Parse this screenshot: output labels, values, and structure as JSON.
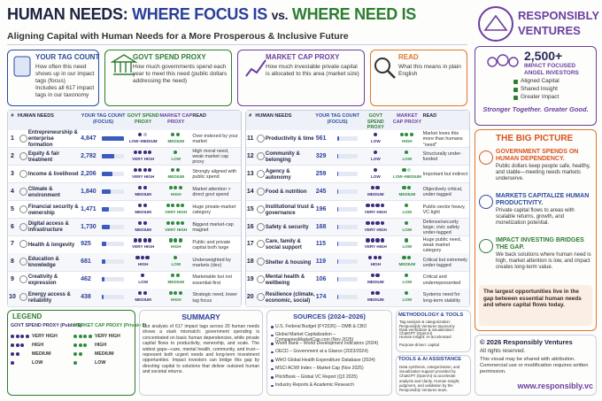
{
  "header": {
    "title": [
      "HUMAN NEEDS:",
      "WHERE FOCUS IS",
      "vs.",
      "WHERE NEED IS"
    ],
    "subtitle": "Aligning Capital with Human Needs for a More Prosperous & Inclusive Future",
    "logo": [
      "RESPONSIBLY",
      "VENTURES"
    ]
  },
  "cards": [
    {
      "title": "YOUR TAG COUNT",
      "text": [
        "How often this need shows up in our impact tags (focus)",
        "Includes all 617 impact tags in our taxonomy"
      ]
    },
    {
      "title": "GOVT SPEND PROXY",
      "text": [
        "How much governments spend each year to meet this need (public dollars addressing the need)"
      ]
    },
    {
      "title": "MARKET CAP PROXY",
      "text": [
        "How much investable private capital is allocated to this area (market size)"
      ]
    },
    {
      "title": "READ",
      "text": [
        "What this means in plain English"
      ]
    }
  ],
  "network": {
    "count": "2,500+",
    "label": "IMPACT FOCUSED ANGEL INVESTORS",
    "checks": [
      "Aligned Capital",
      "Shared Insight",
      "Greater Impact"
    ],
    "tagline": "Stronger Together. Greater Good."
  },
  "table": {
    "columns": [
      "#",
      "HUMAN NEEDS",
      "YOUR TAG COUNT (FOCUS)",
      "GOVT SPEND PROXY",
      "MARKET CAP PROXY",
      "READ"
    ],
    "rows": [
      {
        "n": 1,
        "need": "Entrepreneurship & enterprise formation",
        "tags": 4847,
        "tags_label": "4,847",
        "govt": "LOW–MEDIUM",
        "market": "MEDIUM",
        "read": "Over-indexed by your market"
      },
      {
        "n": 2,
        "need": "Equity & fair treatment",
        "tags": 2782,
        "tags_label": "2,782",
        "govt": "VERY HIGH",
        "market": "LOW",
        "read": "High moral need, weak market cap proxy"
      },
      {
        "n": 3,
        "need": "Income & livelihood",
        "tags": 2206,
        "tags_label": "2,206",
        "govt": "VERY HIGH",
        "market": "MEDIUM",
        "read": "Strongly aligned with public spend"
      },
      {
        "n": 4,
        "need": "Climate & environment",
        "tags": 1840,
        "tags_label": "1,840",
        "govt": "MEDIUM",
        "market": "HIGH",
        "read": "Market attention > direct govt spend"
      },
      {
        "n": 5,
        "need": "Financial security & ownership",
        "tags": 1471,
        "tags_label": "1,471",
        "govt": "MEDIUM",
        "market": "VERY HIGH",
        "read": "Huge private-market category"
      },
      {
        "n": 6,
        "need": "Digital access & infrastructure",
        "tags": 1730,
        "tags_label": "1,730",
        "govt": "MEDIUM",
        "market": "VERY HIGH",
        "read": "Biggest market-cap magnet"
      },
      {
        "n": 7,
        "need": "Health & longevity",
        "tags": 925,
        "govt": "VERY HIGH",
        "market": "HIGH",
        "read": "Public and private capital both large"
      },
      {
        "n": 8,
        "need": "Education & knowledge",
        "tags": 681,
        "govt": "HIGH",
        "market": "LOW",
        "read": "Underweighted by markets (dev)"
      },
      {
        "n": 9,
        "need": "Creativity & expression",
        "tags": 462,
        "govt": "LOW",
        "market": "MEDIUM",
        "read": "Marketable but not essential-first"
      },
      {
        "n": 10,
        "need": "Energy access & reliability",
        "tags": 438,
        "govt": "MEDIUM",
        "market": "HIGH",
        "read": "Strategic need, lower tag focus"
      },
      {
        "n": 11,
        "need": "Productivity & time",
        "tags": 561,
        "govt": "LOW",
        "market": "HIGH",
        "read": "Market loves this more than humans \"need\""
      },
      {
        "n": 12,
        "need": "Community & belonging",
        "tags": 329,
        "govt": "LOW",
        "market": "LOW",
        "read": "Structurally under-funded"
      },
      {
        "n": 13,
        "need": "Agency & autonomy",
        "tags": 259,
        "govt": "LOW",
        "market": "LOW–MEDIUM",
        "read": "Important but indirect"
      },
      {
        "n": 14,
        "need": "Food & nutrition",
        "tags": 245,
        "govt": "MEDIUM",
        "market": "MEDIUM",
        "read": "Objectively critical, under-tagged"
      },
      {
        "n": 15,
        "need": "Institutional trust & governance",
        "tags": 196,
        "govt": "VERY HIGH",
        "market": "LOW",
        "read": "Public-sector heavy, VC-light"
      },
      {
        "n": 16,
        "need": "Safety & security",
        "tags": 168,
        "govt": "VERY HIGH",
        "market": "LOW",
        "read": "Defense/security large; civic safety under-tagged"
      },
      {
        "n": 17,
        "need": "Care, family & social support",
        "tags": 115,
        "govt": "VERY HIGH",
        "market": "LOW",
        "read": "Huge public need, weak market category"
      },
      {
        "n": 18,
        "need": "Shelter & housing",
        "tags": 119,
        "govt": "HIGH",
        "market": "MEDIUM",
        "read": "Critical but extremely under-tagged"
      },
      {
        "n": 19,
        "need": "Mental health & wellbeing",
        "tags": 106,
        "govt": "MEDIUM",
        "market": "LOW",
        "read": "Critical and underrepresented"
      },
      {
        "n": 20,
        "need": "Resilience (climate, economic, social)",
        "tags": 174,
        "govt": "MEDIUM",
        "market": "LOW",
        "read": "Systems need for long-term stability"
      }
    ]
  },
  "big_picture": {
    "title": "THE BIG PICTURE",
    "items": [
      {
        "title": "GOVERNMENT SPENDS ON HUMAN DEPENDENCY.",
        "text": "Public dollars keep people safe, healthy, and stable—meeting needs markets underserve."
      },
      {
        "title": "MARKETS CAPITALIZE HUMAN PRODUCTIVITY.",
        "text": "Private capital flows to areas with scalable returns, growth, and monetization potential."
      },
      {
        "title": "IMPACT INVESTING BRIDGES THE GAP.",
        "text": "We back solutions where human need is high, market attention is low, and impact creates long-term value."
      }
    ],
    "callout": "The largest opportunities live in the gap between essential human needs and where capital flows today."
  },
  "legend": {
    "title": "LEGEND",
    "groups": [
      {
        "title": "GOVT SPEND PROXY (Public $)",
        "levels": [
          "VERY HIGH",
          "HIGH",
          "MEDIUM",
          "LOW"
        ]
      },
      {
        "title": "MARKET CAP PROXY (Private $)",
        "levels": [
          "VERY HIGH",
          "HIGH",
          "MEDIUM",
          "LOW"
        ]
      }
    ]
  },
  "summary": {
    "title": "SUMMARY",
    "text": "Our analysis of 617 impact tags across 20 human needs shows a stark mismatch: government spending is concentrated on basic human dependencies, while private capital flows to productivity, ownership, and scale. The widest gaps—care, mental health, community, and trust—represent both urgent needs and long-term investment opportunities. Impact investors can bridge this gap by directing capital to solutions that deliver outsized human and societal returns."
  },
  "sources": {
    "title": "SOURCES (2024–2026)",
    "items": [
      "U.S. Federal Budget (FY2026) – OMB & CBO",
      "Global Market Capitalization – CompaniesMarketCap.com (Nov 2025)",
      "World Bank – World Development Indicators (2024)",
      "OECD – Government at a Glance (2023/2024)",
      "WHO Global Health Expenditure Database (2024)",
      "MSCI ACWI Index – Market Cap (Nov 2025)",
      "PitchBook – Global VC Report (Q3 2025)",
      "Industry Reports & Academic Research"
    ]
  },
  "methodology": {
    "title": "METHODOLOGY & TOOLS",
    "items": [
      "Tag analysis & categorization: Responsibly Ventures taxonomy",
      "Data verification & visualization: ChatGPT (OpenAI)",
      "Human insight: AI-accelerated",
      "Purpose-driven: capital"
    ]
  },
  "ai": {
    "title": "TOOLS & AI ASSISTANCE",
    "text": "Data synthesis, categorization, and visualization support provided by ChatGPT (OpenAI) to accelerate analysis and clarity. Human insight, judgment, and validation by the Responsibly Ventures team."
  },
  "footer": {
    "copyright": "© 2026 Responsibly Ventures",
    "rights": "All rights reserved.",
    "notice": "This visual may be shared with attribution. Commercial use or modification requires written permission.",
    "url": "www.responsibly.vc"
  }
}
